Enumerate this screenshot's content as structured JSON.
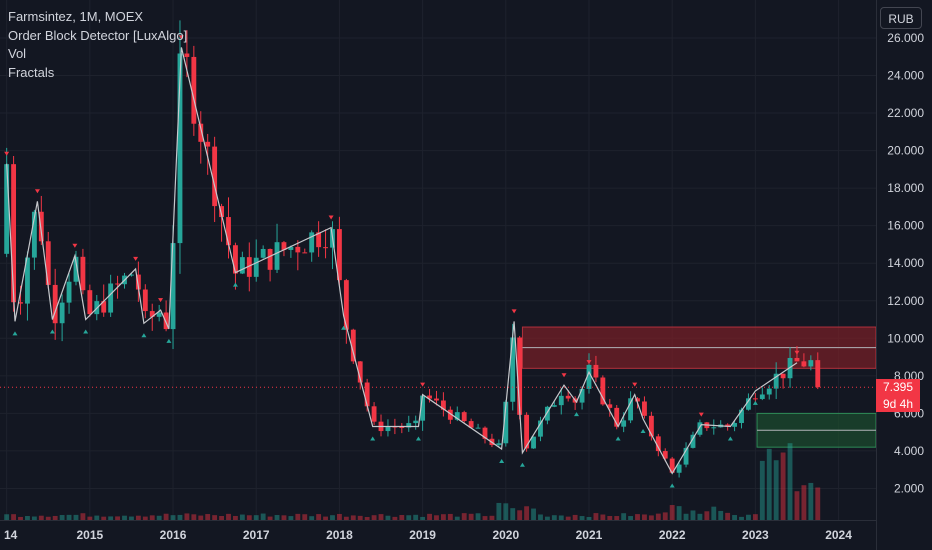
{
  "legend": {
    "symbol": "Farmsintez, 1M, MOEX",
    "indicators": [
      "Order Block Detector [LuxAlgo]",
      "Vol",
      "Fractals"
    ]
  },
  "currency": "RUB",
  "last_price": {
    "value": "7.395",
    "countdown": "9d 4h"
  },
  "colors": {
    "background": "#131722",
    "up": "#26a69a",
    "down": "#f23645",
    "grid": "#1e222d",
    "text": "#d1d4dc",
    "zigzag": "#c6c8cc",
    "bear_ob": "#7a1f27",
    "bull_ob": "#1b4d2e"
  },
  "chart_data": {
    "type": "candlestick",
    "y_axis_ticks": [
      "2.000",
      "4.000",
      "6.000",
      "8.000",
      "10.000",
      "12.000",
      "14.000",
      "16.000",
      "18.000",
      "20.000",
      "22.000",
      "24.000",
      "26.000"
    ],
    "x_axis_ticks": [
      "14",
      "2015",
      "2016",
      "2017",
      "2018",
      "2019",
      "2020",
      "2021",
      "2022",
      "2023",
      "2024"
    ],
    "ylim": [
      0,
      27
    ],
    "xlim": [
      2013.92,
      2024.45
    ],
    "order_blocks": [
      {
        "kind": "bearish",
        "x_start": 2020.2,
        "x_end": 2024.45,
        "top": 10.6,
        "bottom": 8.4,
        "mid": 9.5
      },
      {
        "kind": "bullish",
        "x_start": 2023.02,
        "x_end": 2024.45,
        "top": 6.0,
        "bottom": 4.2,
        "mid": 5.1
      }
    ],
    "zigzag": [
      [
        2014.0,
        19.3
      ],
      [
        2014.1,
        10.9
      ],
      [
        2014.37,
        17.3
      ],
      [
        2014.55,
        11.0
      ],
      [
        2014.82,
        14.4
      ],
      [
        2014.95,
        11.0
      ],
      [
        2015.55,
        13.7
      ],
      [
        2015.65,
        10.8
      ],
      [
        2015.85,
        11.5
      ],
      [
        2015.95,
        10.5
      ],
      [
        2016.1,
        25.5
      ],
      [
        2016.75,
        13.5
      ],
      [
        2017.9,
        15.9
      ],
      [
        2018.05,
        11.2
      ],
      [
        2018.4,
        5.3
      ],
      [
        2018.95,
        5.3
      ],
      [
        2019.0,
        7.0
      ],
      [
        2019.95,
        4.1
      ],
      [
        2020.1,
        10.9
      ],
      [
        2020.2,
        3.9
      ],
      [
        2020.7,
        7.5
      ],
      [
        2020.85,
        6.6
      ],
      [
        2021.0,
        8.2
      ],
      [
        2021.35,
        5.3
      ],
      [
        2021.55,
        7.0
      ],
      [
        2021.65,
        5.7
      ],
      [
        2022.0,
        2.8
      ],
      [
        2022.35,
        5.4
      ],
      [
        2022.7,
        5.3
      ],
      [
        2023.0,
        7.2
      ],
      [
        2023.5,
        8.7
      ]
    ]
  }
}
